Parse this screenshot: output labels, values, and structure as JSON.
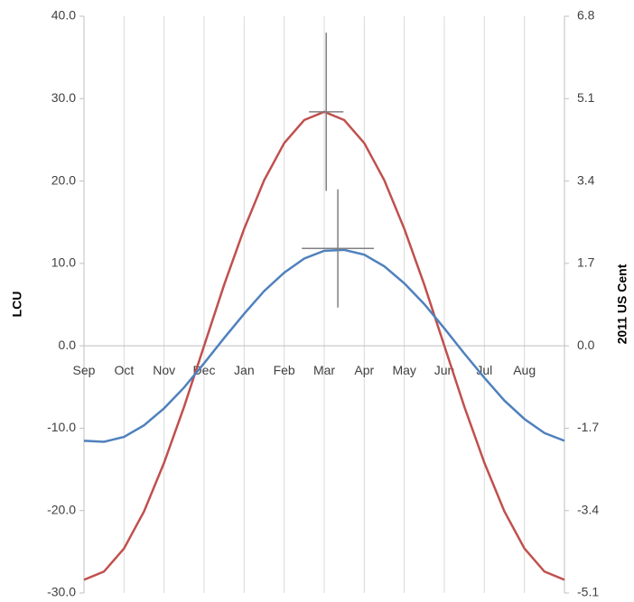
{
  "chart_data": {
    "type": "line",
    "y_label": "LCU",
    "y2_label": "2011 US Cent",
    "xlim": [
      0,
      12
    ],
    "xticks": [
      {
        "value": 0,
        "label": "Sep"
      },
      {
        "value": 1,
        "label": "Oct"
      },
      {
        "value": 2,
        "label": "Nov"
      },
      {
        "value": 3,
        "label": "Dec"
      },
      {
        "value": 4,
        "label": "Jan"
      },
      {
        "value": 5,
        "label": "Feb"
      },
      {
        "value": 6,
        "label": "Mar"
      },
      {
        "value": 7,
        "label": "Apr"
      },
      {
        "value": 8,
        "label": "May"
      },
      {
        "value": 9,
        "label": "Jun"
      },
      {
        "value": 10,
        "label": "Jul"
      },
      {
        "value": 11,
        "label": "Aug"
      }
    ],
    "ylim": [
      -30,
      40
    ],
    "yticks": [
      {
        "value": -30,
        "label": "-30.0"
      },
      {
        "value": -20,
        "label": "-20.0"
      },
      {
        "value": -10,
        "label": "-10.0"
      },
      {
        "value": 0,
        "label": "0.0"
      },
      {
        "value": 10,
        "label": "10.0"
      },
      {
        "value": 20,
        "label": "20.0"
      },
      {
        "value": 30,
        "label": "30.0"
      },
      {
        "value": 40,
        "label": "40.0"
      }
    ],
    "y2lim": [
      -5.1,
      6.8
    ],
    "y2ticks": [
      -5.1,
      -3.4,
      -1.7,
      {
        "value": 0,
        "label": "0.0"
      },
      1.7,
      3.4,
      5.1,
      6.8
    ],
    "grid": "x",
    "x": [
      0,
      0.5,
      1,
      1.5,
      2,
      2.5,
      3,
      3.5,
      4,
      4.5,
      5,
      5.5,
      6,
      6.5,
      7,
      7.5,
      8,
      8.5,
      9,
      9.5,
      10,
      10.5,
      11,
      11.5,
      12
    ],
    "series": [
      {
        "color": "#c0504d",
        "axis": "y",
        "values": [
          -28.4,
          -27.4,
          -24.6,
          -20.1,
          -14.2,
          -7.4,
          0,
          7.4,
          14.2,
          20.1,
          24.6,
          27.4,
          28.4,
          27.4,
          24.6,
          20.1,
          14.2,
          7.4,
          0,
          -7.4,
          -14.2,
          -20.1,
          -24.6,
          -27.4,
          -28.4
        ],
        "error_bar": {
          "x": 6.05,
          "y": 28.4,
          "x_err": 0.43,
          "y_err": 9.6
        }
      },
      {
        "color": "#4f81bd",
        "axis": "y2",
        "values": [
          -1.96,
          -1.98,
          -1.88,
          -1.64,
          -1.29,
          -0.86,
          -0.36,
          0.16,
          0.66,
          1.13,
          1.51,
          1.8,
          1.96,
          1.98,
          1.88,
          1.64,
          1.29,
          0.86,
          0.36,
          -0.16,
          -0.66,
          -1.13,
          -1.51,
          -1.8,
          -1.96
        ],
        "error_bar": {
          "x": 6.34,
          "y": 2.01,
          "x_err": 0.9,
          "y_err": 1.22
        }
      }
    ]
  }
}
